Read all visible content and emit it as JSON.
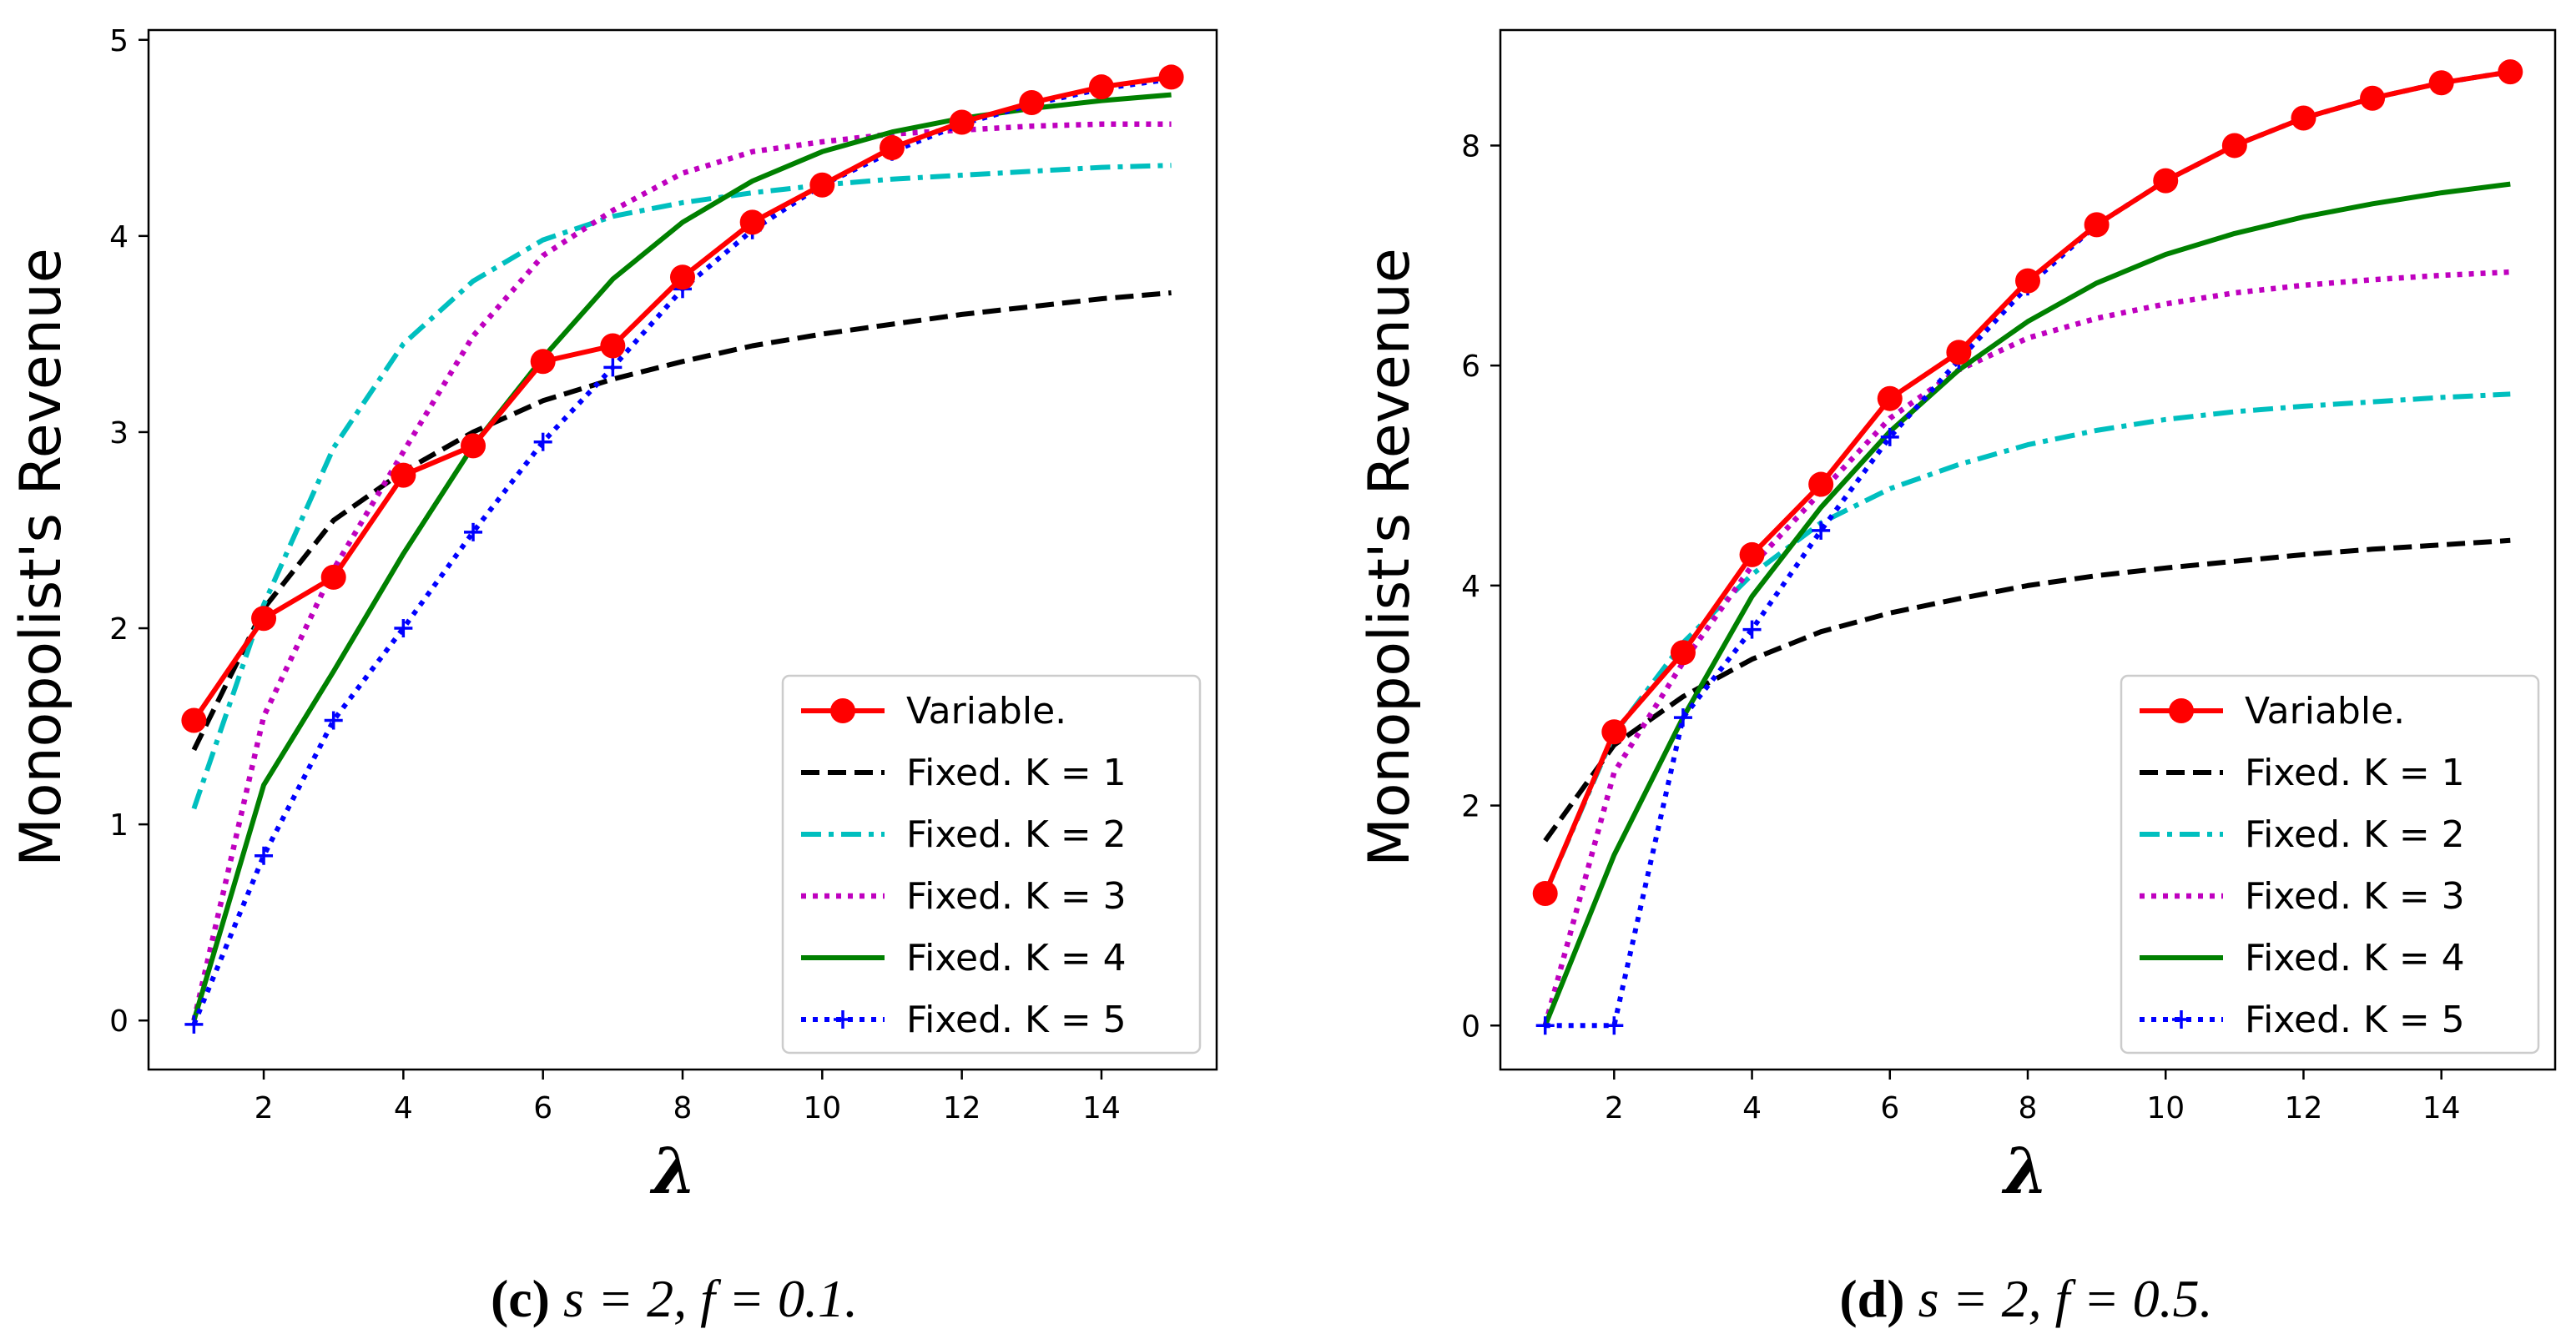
{
  "captions": [
    {
      "label": "(c)",
      "rest": " s = 2, f = 0.1."
    },
    {
      "label": "(d)",
      "rest": " s = 2, f = 0.5."
    }
  ],
  "chart_data": [
    {
      "type": "line",
      "title": "",
      "xlabel": "λ",
      "ylabel": "Monopolist's Revenue",
      "xlim": [
        0.35,
        15.65
      ],
      "ylim": [
        -0.25,
        5.05
      ],
      "xticks": [
        2,
        4,
        6,
        8,
        10,
        12,
        14
      ],
      "yticks": [
        0,
        1,
        2,
        3,
        4,
        5
      ],
      "x": [
        1,
        2,
        3,
        4,
        5,
        6,
        7,
        8,
        9,
        10,
        11,
        12,
        13,
        14,
        15
      ],
      "legend_position": "lower-right",
      "series": [
        {
          "name": "Variable.",
          "color": "#ff0000",
          "style": "marker-line",
          "values": [
            1.53,
            2.05,
            2.26,
            2.78,
            2.93,
            3.36,
            3.44,
            3.79,
            4.07,
            4.26,
            4.45,
            4.58,
            4.68,
            4.76,
            4.81
          ]
        },
        {
          "name": "Fixed. K = 1",
          "color": "#000000",
          "style": "dashed",
          "values": [
            1.38,
            2.1,
            2.55,
            2.8,
            3.0,
            3.16,
            3.27,
            3.36,
            3.44,
            3.5,
            3.55,
            3.6,
            3.64,
            3.68,
            3.71
          ]
        },
        {
          "name": "Fixed. K = 2",
          "color": "#00bfbf",
          "style": "dashdot",
          "values": [
            1.08,
            2.12,
            2.92,
            3.45,
            3.77,
            3.98,
            4.1,
            4.17,
            4.22,
            4.26,
            4.29,
            4.31,
            4.33,
            4.35,
            4.36
          ]
        },
        {
          "name": "Fixed. K = 3",
          "color": "#bf00bf",
          "style": "dotted",
          "values": [
            0.0,
            1.55,
            2.3,
            2.9,
            3.49,
            3.9,
            4.13,
            4.32,
            4.43,
            4.48,
            4.52,
            4.54,
            4.56,
            4.57,
            4.57
          ]
        },
        {
          "name": "Fixed. K = 4",
          "color": "#008000",
          "style": "solid",
          "values": [
            0.0,
            1.2,
            1.78,
            2.38,
            2.93,
            3.38,
            3.78,
            4.07,
            4.28,
            4.43,
            4.53,
            4.6,
            4.65,
            4.69,
            4.72
          ]
        },
        {
          "name": "Fixed. K = 5",
          "color": "#0000ff",
          "style": "dotted-plus",
          "values": [
            -0.02,
            0.84,
            1.53,
            2.0,
            2.49,
            2.95,
            3.33,
            3.73,
            4.03,
            4.26,
            4.43,
            4.57,
            4.67,
            4.75,
            4.8
          ]
        }
      ]
    },
    {
      "type": "line",
      "title": "",
      "xlabel": "λ",
      "ylabel": "Monopolist's Revenue",
      "xlim": [
        0.35,
        15.65
      ],
      "ylim": [
        -0.4,
        9.05
      ],
      "xticks": [
        2,
        4,
        6,
        8,
        10,
        12,
        14
      ],
      "yticks": [
        0,
        2,
        4,
        6,
        8
      ],
      "x": [
        1,
        2,
        3,
        4,
        5,
        6,
        7,
        8,
        9,
        10,
        11,
        12,
        13,
        14,
        15
      ],
      "legend_position": "lower-right",
      "series": [
        {
          "name": "Variable.",
          "color": "#ff0000",
          "style": "marker-line",
          "values": [
            1.2,
            2.67,
            3.39,
            4.28,
            4.92,
            5.7,
            6.12,
            6.77,
            7.28,
            7.68,
            8.0,
            8.25,
            8.43,
            8.57,
            8.67
          ]
        },
        {
          "name": "Fixed. K = 1",
          "color": "#000000",
          "style": "dashed",
          "values": [
            1.68,
            2.55,
            2.99,
            3.33,
            3.58,
            3.75,
            3.88,
            4.0,
            4.09,
            4.16,
            4.22,
            4.28,
            4.33,
            4.37,
            4.41
          ]
        },
        {
          "name": "Fixed. K = 2",
          "color": "#00bfbf",
          "style": "dashdot",
          "values": [
            1.2,
            2.65,
            3.48,
            4.1,
            4.57,
            4.88,
            5.1,
            5.28,
            5.41,
            5.51,
            5.58,
            5.63,
            5.67,
            5.71,
            5.74
          ]
        },
        {
          "name": "Fixed. K = 3",
          "color": "#bf00bf",
          "style": "dotted",
          "values": [
            0.0,
            2.3,
            3.3,
            4.18,
            4.85,
            5.52,
            5.96,
            6.25,
            6.43,
            6.56,
            6.66,
            6.73,
            6.78,
            6.82,
            6.85
          ]
        },
        {
          "name": "Fixed. K = 4",
          "color": "#008000",
          "style": "solid",
          "values": [
            0.0,
            1.55,
            2.8,
            3.9,
            4.71,
            5.4,
            5.96,
            6.4,
            6.75,
            7.01,
            7.2,
            7.35,
            7.47,
            7.57,
            7.65
          ]
        },
        {
          "name": "Fixed. K = 5",
          "color": "#0000ff",
          "style": "dotted-plus",
          "values": [
            0.0,
            0.0,
            2.8,
            3.6,
            4.5,
            5.35,
            6.05,
            6.72,
            7.28,
            7.68,
            8.0,
            8.25,
            8.43,
            8.57,
            8.67
          ]
        }
      ]
    }
  ]
}
